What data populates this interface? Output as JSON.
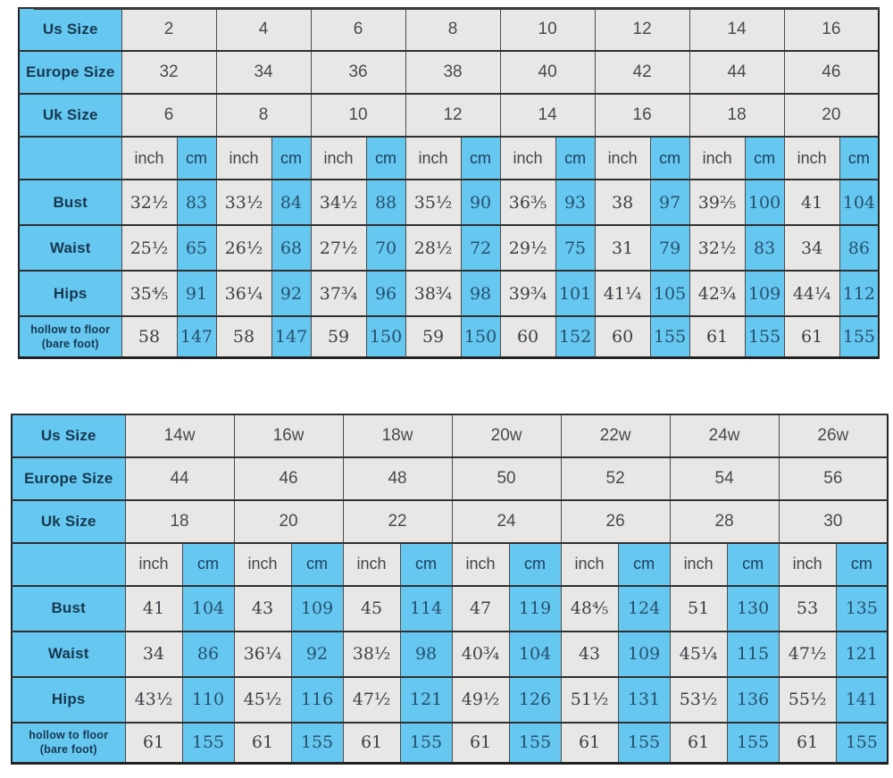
{
  "colors": {
    "cell_blue": "#66c7f0",
    "cell_gray": "#e8e7e5",
    "border": "#303030",
    "label_text": "#17384f",
    "value_text": "#3c3f47"
  },
  "unit_labels": {
    "inch": "inch",
    "cm": "cm"
  },
  "tables": [
    {
      "name": "standard-sizes",
      "header_rows": [
        {
          "label": "Us Size",
          "values": [
            "2",
            "4",
            "6",
            "8",
            "10",
            "12",
            "14",
            "16"
          ]
        },
        {
          "label": "Europe Size",
          "values": [
            "32",
            "34",
            "36",
            "38",
            "40",
            "42",
            "44",
            "46"
          ]
        },
        {
          "label": "Uk Size",
          "values": [
            "6",
            "8",
            "10",
            "12",
            "14",
            "16",
            "18",
            "20"
          ]
        }
      ],
      "measure_rows": [
        {
          "label": "Bust",
          "pairs": [
            [
              "32½",
              "83"
            ],
            [
              "33½",
              "84"
            ],
            [
              "34½",
              "88"
            ],
            [
              "35½",
              "90"
            ],
            [
              "36⅗",
              "93"
            ],
            [
              "38",
              "97"
            ],
            [
              "39⅖",
              "100"
            ],
            [
              "41",
              "104"
            ]
          ]
        },
        {
          "label": "Waist",
          "pairs": [
            [
              "25½",
              "65"
            ],
            [
              "26½",
              "68"
            ],
            [
              "27½",
              "70"
            ],
            [
              "28½",
              "72"
            ],
            [
              "29½",
              "75"
            ],
            [
              "31",
              "79"
            ],
            [
              "32½",
              "83"
            ],
            [
              "34",
              "86"
            ]
          ]
        },
        {
          "label": "Hips",
          "pairs": [
            [
              "35⅘",
              "91"
            ],
            [
              "36¼",
              "92"
            ],
            [
              "37¾",
              "96"
            ],
            [
              "38¾",
              "98"
            ],
            [
              "39¾",
              "101"
            ],
            [
              "41¼",
              "105"
            ],
            [
              "42¾",
              "109"
            ],
            [
              "44¼",
              "112"
            ]
          ]
        },
        {
          "label": "hollow to floor",
          "label2": "(bare foot)",
          "pairs": [
            [
              "58",
              "147"
            ],
            [
              "58",
              "147"
            ],
            [
              "59",
              "150"
            ],
            [
              "59",
              "150"
            ],
            [
              "60",
              "152"
            ],
            [
              "60",
              "155"
            ],
            [
              "61",
              "155"
            ],
            [
              "61",
              "155"
            ]
          ]
        }
      ]
    },
    {
      "name": "plus-sizes",
      "header_rows": [
        {
          "label": "Us Size",
          "values": [
            "14w",
            "16w",
            "18w",
            "20w",
            "22w",
            "24w",
            "26w"
          ]
        },
        {
          "label": "Europe Size",
          "values": [
            "44",
            "46",
            "48",
            "50",
            "52",
            "54",
            "56"
          ]
        },
        {
          "label": "Uk Size",
          "values": [
            "18",
            "20",
            "22",
            "24",
            "26",
            "28",
            "30"
          ]
        }
      ],
      "measure_rows": [
        {
          "label": "Bust",
          "pairs": [
            [
              "41",
              "104"
            ],
            [
              "43",
              "109"
            ],
            [
              "45",
              "114"
            ],
            [
              "47",
              "119"
            ],
            [
              "48⅘",
              "124"
            ],
            [
              "51",
              "130"
            ],
            [
              "53",
              "135"
            ]
          ]
        },
        {
          "label": "Waist",
          "pairs": [
            [
              "34",
              "86"
            ],
            [
              "36¼",
              "92"
            ],
            [
              "38½",
              "98"
            ],
            [
              "40¾",
              "104"
            ],
            [
              "43",
              "109"
            ],
            [
              "45¼",
              "115"
            ],
            [
              "47½",
              "121"
            ]
          ]
        },
        {
          "label": "Hips",
          "pairs": [
            [
              "43½",
              "110"
            ],
            [
              "45½",
              "116"
            ],
            [
              "47½",
              "121"
            ],
            [
              "49½",
              "126"
            ],
            [
              "51½",
              "131"
            ],
            [
              "53½",
              "136"
            ],
            [
              "55½",
              "141"
            ]
          ]
        },
        {
          "label": "hollow to floor",
          "label2": "(bare foot)",
          "pairs": [
            [
              "61",
              "155"
            ],
            [
              "61",
              "155"
            ],
            [
              "61",
              "155"
            ],
            [
              "61",
              "155"
            ],
            [
              "61",
              "155"
            ],
            [
              "61",
              "155"
            ],
            [
              "61",
              "155"
            ]
          ]
        }
      ]
    }
  ]
}
